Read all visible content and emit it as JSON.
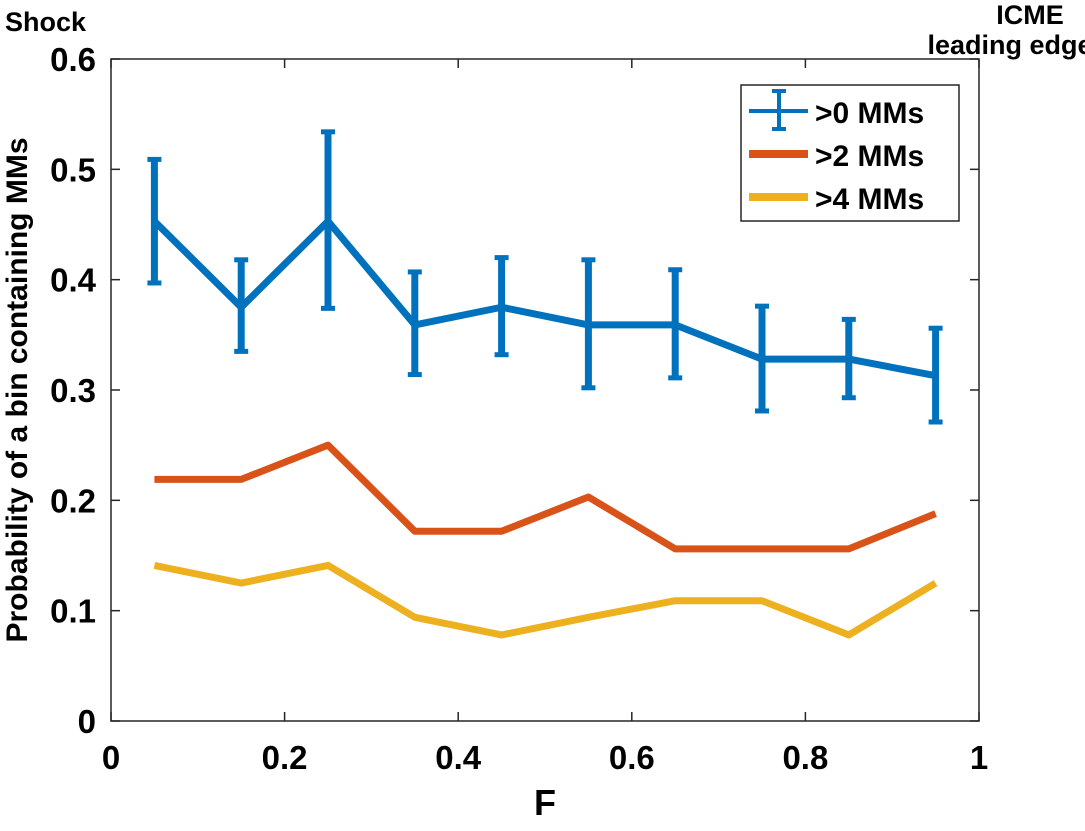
{
  "annotations": {
    "left": "Shock",
    "right_line1": "ICME",
    "right_line2": "leading edge"
  },
  "chart_data": {
    "type": "line",
    "xlabel": "F",
    "ylabel": "Probability of a bin containing MMs",
    "xlim": [
      0,
      1
    ],
    "ylim": [
      0,
      0.6
    ],
    "xticks": [
      "0",
      "0.2",
      "0.4",
      "0.6",
      "0.8",
      "1"
    ],
    "xtick_values": [
      0,
      0.2,
      0.4,
      0.6,
      0.8,
      1
    ],
    "yticks": [
      "0",
      "0.1",
      "0.2",
      "0.3",
      "0.4",
      "0.5",
      "0.6"
    ],
    "ytick_values": [
      0,
      0.1,
      0.2,
      0.3,
      0.4,
      0.5,
      0.6
    ],
    "grid": false,
    "legend_position": "top-right",
    "x": [
      0.05,
      0.15,
      0.25,
      0.35,
      0.45,
      0.55,
      0.65,
      0.75,
      0.85,
      0.95
    ],
    "series": [
      {
        "name": ">0 MMs",
        "color": "#0072BD",
        "errorbars": true,
        "values": [
          0.453,
          0.375,
          0.453,
          0.359,
          0.375,
          0.359,
          0.359,
          0.328,
          0.328,
          0.313
        ],
        "upper": [
          0.509,
          0.418,
          0.534,
          0.407,
          0.42,
          0.418,
          0.409,
          0.376,
          0.364,
          0.356
        ],
        "lower": [
          0.397,
          0.335,
          0.374,
          0.314,
          0.332,
          0.302,
          0.311,
          0.281,
          0.293,
          0.271
        ]
      },
      {
        "name": ">2 MMs",
        "color": "#D95319",
        "values": [
          0.219,
          0.219,
          0.25,
          0.172,
          0.172,
          0.203,
          0.156,
          0.156,
          0.156,
          0.188
        ]
      },
      {
        "name": ">4 MMs",
        "color": "#EDB120",
        "values": [
          0.141,
          0.125,
          0.141,
          0.094,
          0.078,
          0.094,
          0.109,
          0.109,
          0.078,
          0.125
        ]
      }
    ]
  }
}
